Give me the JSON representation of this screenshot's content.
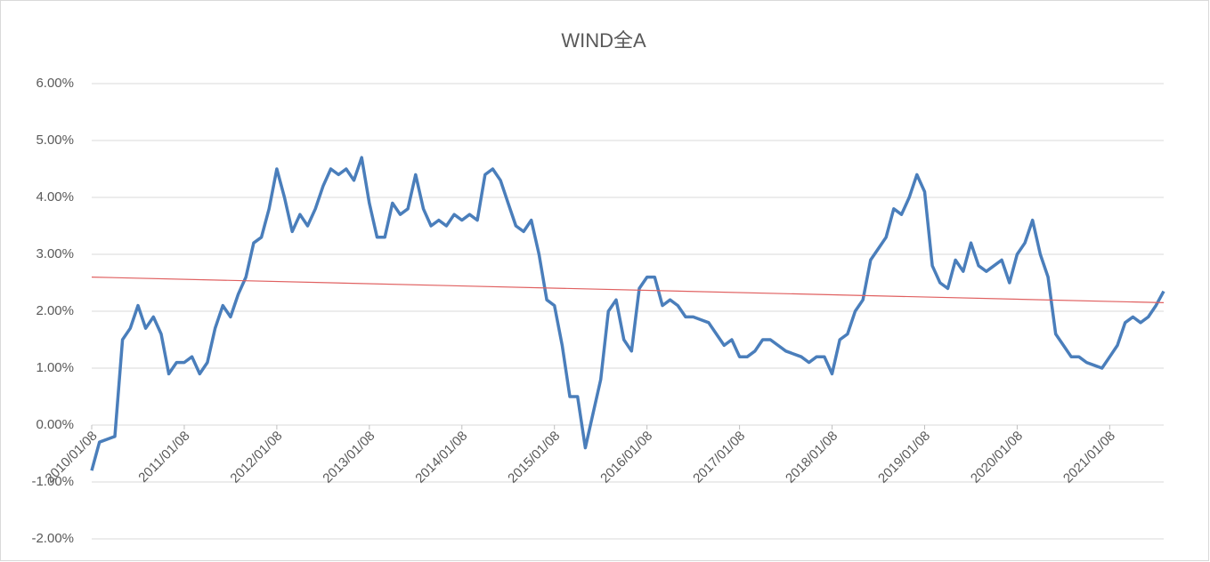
{
  "chart_data": {
    "type": "line",
    "title": "WIND全A",
    "categories": [
      "2010/01/08",
      null,
      null,
      null,
      null,
      null,
      null,
      null,
      null,
      null,
      null,
      null,
      "2011/01/08",
      null,
      null,
      null,
      null,
      null,
      null,
      null,
      null,
      null,
      null,
      null,
      "2012/01/08",
      null,
      null,
      null,
      null,
      null,
      null,
      null,
      null,
      null,
      null,
      null,
      "2013/01/08",
      null,
      null,
      null,
      null,
      null,
      null,
      null,
      null,
      null,
      null,
      null,
      "2014/01/08",
      null,
      null,
      null,
      null,
      null,
      null,
      null,
      null,
      null,
      null,
      null,
      "2015/01/08",
      null,
      null,
      null,
      null,
      null,
      null,
      null,
      null,
      null,
      null,
      null,
      "2016/01/08",
      null,
      null,
      null,
      null,
      null,
      null,
      null,
      null,
      null,
      null,
      null,
      "2017/01/08",
      null,
      null,
      null,
      null,
      null,
      null,
      null,
      null,
      null,
      null,
      null,
      "2018/01/08",
      null,
      null,
      null,
      null,
      null,
      null,
      null,
      null,
      null,
      null,
      null,
      "2019/01/08",
      null,
      null,
      null,
      null,
      null,
      null,
      null,
      null,
      null,
      null,
      null,
      "2020/01/08",
      null,
      null,
      null,
      null,
      null,
      null,
      null,
      null,
      null,
      null,
      null,
      "2021/01/08",
      null,
      null,
      null,
      null,
      null,
      null,
      null
    ],
    "series": [
      {
        "color": "#4a7ebb",
        "values": [
          -0.8,
          -0.3,
          -0.25,
          -0.2,
          1.5,
          1.7,
          2.1,
          1.7,
          1.9,
          1.6,
          0.9,
          1.1,
          1.1,
          1.2,
          0.9,
          1.1,
          1.7,
          2.1,
          1.9,
          2.3,
          2.6,
          3.2,
          3.3,
          3.8,
          4.5,
          4.0,
          3.4,
          3.7,
          3.5,
          3.8,
          4.2,
          4.5,
          4.4,
          4.5,
          4.3,
          4.7,
          3.9,
          3.3,
          3.3,
          3.9,
          3.7,
          3.8,
          4.4,
          3.8,
          3.5,
          3.6,
          3.5,
          3.7,
          3.6,
          3.7,
          3.6,
          4.4,
          4.5,
          4.3,
          3.9,
          3.5,
          3.4,
          3.6,
          3.0,
          2.2,
          2.1,
          1.4,
          0.5,
          0.5,
          -0.4,
          0.2,
          0.8,
          2.0,
          2.2,
          1.5,
          1.3,
          2.4,
          2.6,
          2.6,
          2.1,
          2.2,
          2.1,
          1.9,
          1.9,
          1.85,
          1.8,
          1.6,
          1.4,
          1.5,
          1.2,
          1.2,
          1.3,
          1.5,
          1.5,
          1.4,
          1.3,
          1.25,
          1.2,
          1.1,
          1.2,
          1.2,
          0.9,
          1.5,
          1.6,
          2.0,
          2.2,
          2.9,
          3.1,
          3.3,
          3.8,
          3.7,
          4.0,
          4.4,
          4.1,
          2.8,
          2.5,
          2.4,
          2.9,
          2.7,
          3.2,
          2.8,
          2.7,
          2.8,
          2.9,
          2.5,
          3.0,
          3.2,
          3.6,
          3.0,
          2.6,
          1.6,
          1.4,
          1.2,
          1.2,
          1.1,
          1.05,
          1.0,
          1.2,
          1.4,
          1.8,
          1.9,
          1.8,
          1.9,
          2.1,
          2.35
        ]
      }
    ],
    "trendline": {
      "color": "#e06060",
      "values": [
        2.6,
        2.15
      ]
    },
    "ylim": [
      -2,
      6
    ],
    "yticks": [
      {
        "value": -2,
        "label": "-2.00%"
      },
      {
        "value": -1,
        "label": "-1.00%"
      },
      {
        "value": 0,
        "label": "0.00%"
      },
      {
        "value": 1,
        "label": "1.00%"
      },
      {
        "value": 2,
        "label": "2.00%"
      },
      {
        "value": 3,
        "label": "3.00%"
      },
      {
        "value": 4,
        "label": "4.00%"
      },
      {
        "value": 5,
        "label": "5.00%"
      },
      {
        "value": 6,
        "label": "6.00%"
      }
    ],
    "grid": true
  }
}
